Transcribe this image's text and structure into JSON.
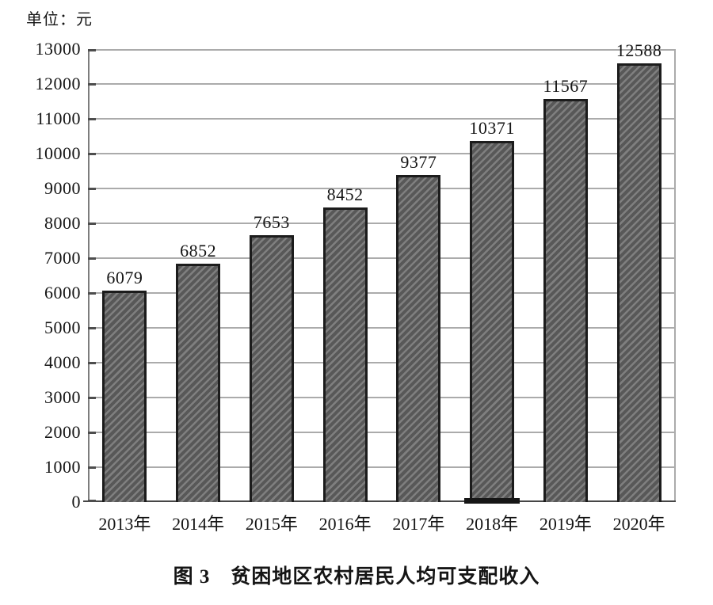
{
  "page": {
    "background": "#ffffff"
  },
  "unit_label": "单位：元",
  "caption": "图 3　贫困地区农村居民人均可支配收入",
  "chart_data": {
    "type": "bar",
    "title": "图 3　贫困地区农村居民人均可支配收入",
    "unit_label": "单位：元",
    "categories": [
      "2013年",
      "2014年",
      "2015年",
      "2016年",
      "2017年",
      "2018年",
      "2019年",
      "2020年"
    ],
    "values": [
      6079,
      6852,
      7653,
      8452,
      9377,
      10371,
      11567,
      12588
    ],
    "xlabel": "",
    "ylabel": "",
    "ylim": [
      0,
      13000
    ],
    "ytick_step": 1000,
    "grid": true,
    "legend": "none",
    "value_labels_shown": true,
    "bar_fill_color": "#585858",
    "bar_stripe_color": "#7f7f7f",
    "bar_border_color": "#1c1c1c",
    "gridline_color": "#ababab",
    "frame_color": "#ababab",
    "left_axis_color": "#7d7d7d",
    "bottom_axis_color": "#464646",
    "tick_color": "#4d4d4d",
    "text_color": "#151515",
    "ink_smudge_bar_index": 5
  }
}
